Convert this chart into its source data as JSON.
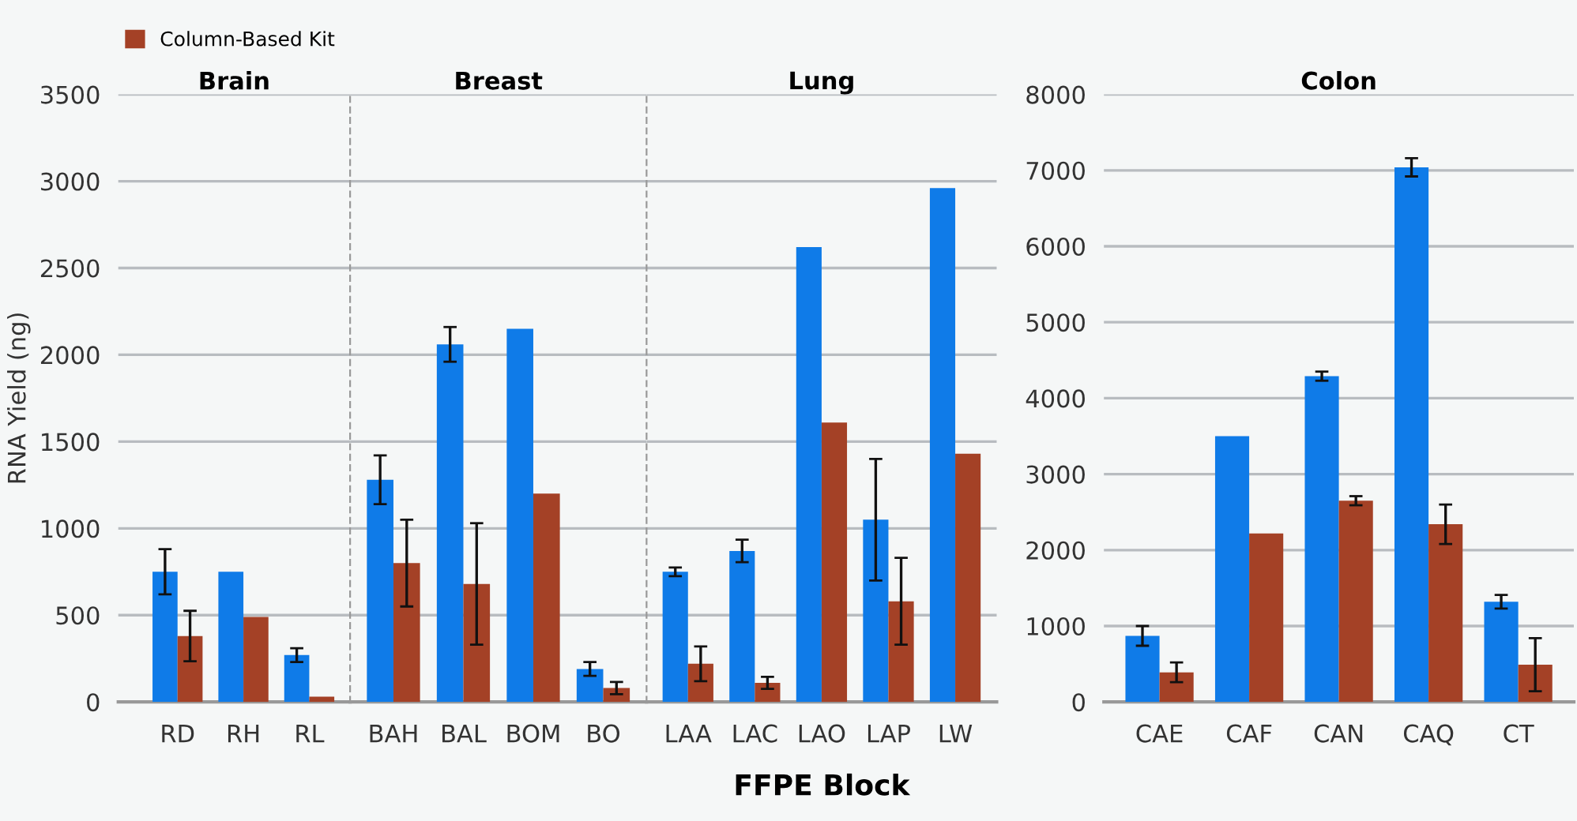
{
  "chart_data": [
    {
      "type": "bar",
      "title": "Brain",
      "ylabel": "RNA Yield (ng)",
      "categories": [
        "RD",
        "RH",
        "RL"
      ],
      "ylim": [
        0,
        3500
      ],
      "yticks": [
        0,
        500,
        1000,
        1500,
        2000,
        2500,
        3000,
        3500
      ],
      "grid": "y",
      "legend": "top left",
      "series": [
        {
          "color": "#0f7be8",
          "values": [
            750,
            750,
            270
          ],
          "errors": [
            130,
            null,
            40
          ]
        },
        {
          "name": "Column-Based Kit",
          "color": "#a44126",
          "values": [
            380,
            490,
            30
          ],
          "errors": [
            145,
            null,
            null
          ]
        }
      ]
    },
    {
      "type": "bar",
      "title": "Breast",
      "categories": [
        "BAH",
        "BAL",
        "BOM",
        "BO"
      ],
      "ylim": [
        0,
        3500
      ],
      "yticks": [
        0,
        500,
        1000,
        1500,
        2000,
        2500,
        3000,
        3500
      ],
      "grid": "y",
      "tick_labels": "x",
      "series": [
        {
          "color": "#0f7be8",
          "values": [
            1280,
            2060,
            2150,
            190
          ],
          "errors": [
            140,
            100,
            null,
            40
          ]
        },
        {
          "color": "#a44126",
          "values": [
            800,
            680,
            1200,
            80
          ],
          "errors": [
            250,
            350,
            null,
            35
          ]
        }
      ]
    },
    {
      "type": "bar",
      "title": "Lung",
      "xlabel": "FFPE Block",
      "categories": [
        "LAA",
        "LAC",
        "LAO",
        "LAP",
        "LW"
      ],
      "ylim": [
        0,
        3500
      ],
      "yticks": [
        0,
        500,
        1000,
        1500,
        2000,
        2500,
        3000,
        3500
      ],
      "grid": "y",
      "tick_labels": "x",
      "series": [
        {
          "color": "#0f7be8",
          "values": [
            750,
            870,
            2620,
            1050,
            2960
          ],
          "errors": [
            25,
            65,
            null,
            350,
            null
          ]
        },
        {
          "color": "#a44126",
          "values": [
            220,
            110,
            1610,
            580,
            1430
          ],
          "errors": [
            100,
            35,
            null,
            250,
            null
          ]
        }
      ]
    },
    {
      "type": "bar",
      "title": "Colon",
      "categories": [
        "CAE",
        "CAF",
        "CAN",
        "CAQ",
        "CT"
      ],
      "ylim": [
        0,
        8000
      ],
      "yticks": [
        0,
        1000,
        2000,
        3000,
        4000,
        5000,
        6000,
        7000,
        8000
      ],
      "grid": "y",
      "series": [
        {
          "color": "#0f7be8",
          "values": [
            870,
            3500,
            4290,
            7040,
            1320
          ],
          "errors": [
            130,
            null,
            60,
            120,
            90
          ]
        },
        {
          "color": "#a44126",
          "values": [
            390,
            2220,
            2650,
            2340,
            490
          ],
          "errors": [
            130,
            null,
            60,
            260,
            350
          ]
        }
      ]
    }
  ]
}
